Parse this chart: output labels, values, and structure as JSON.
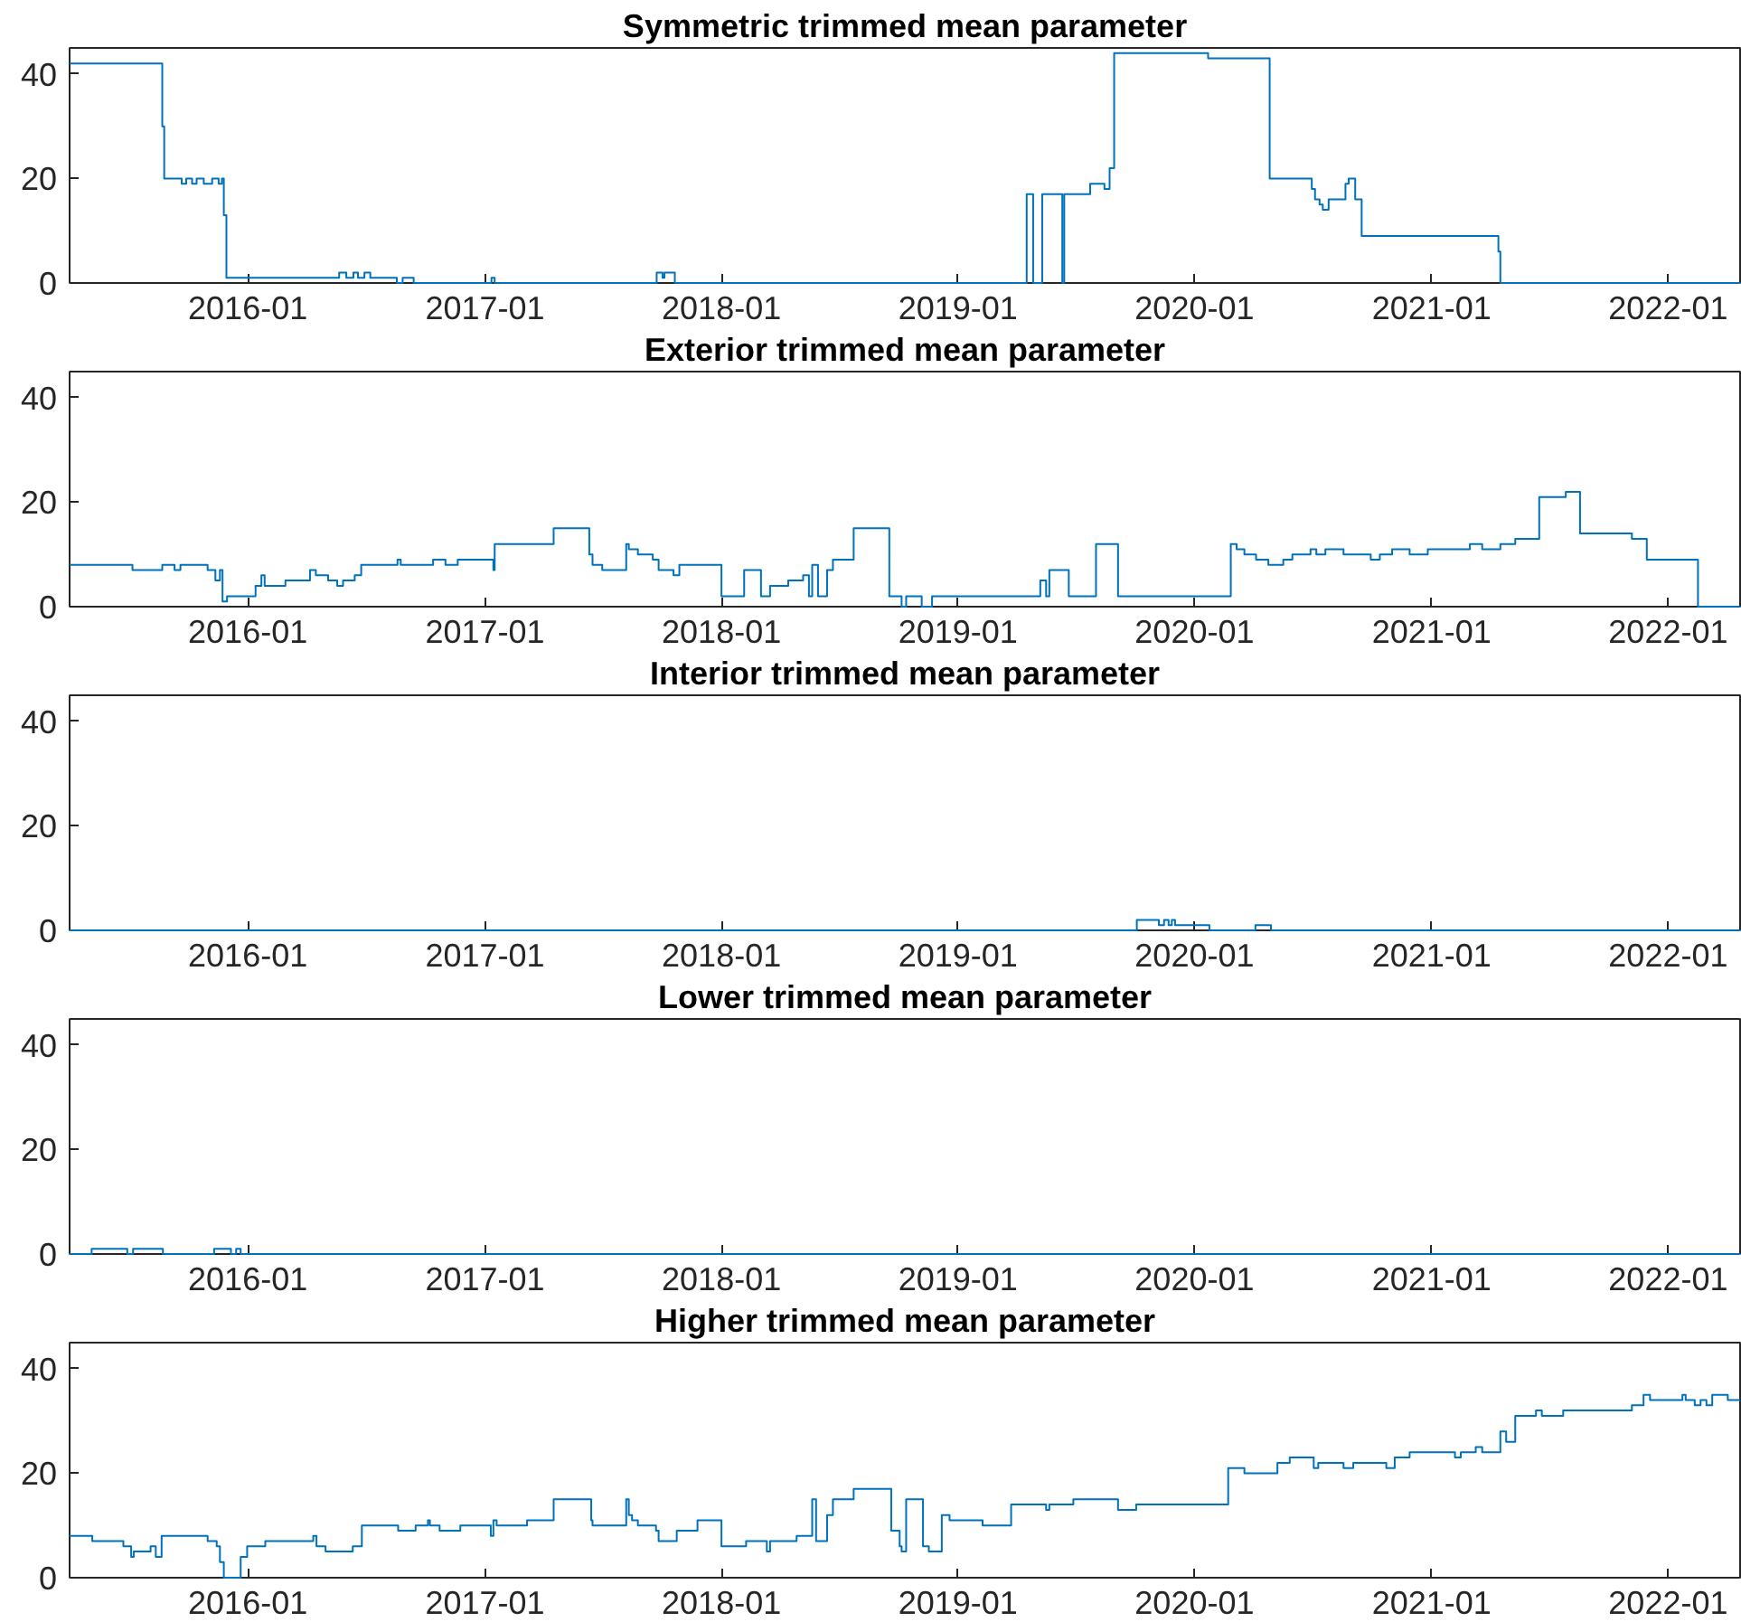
{
  "chart_data": [
    {
      "type": "step",
      "title": "Symmetric trimmed mean parameter",
      "color": "#0072bd",
      "xlim": [
        "2015-04-01",
        "2022-04-22"
      ],
      "xticks": [
        "2016-01",
        "2017-01",
        "2018-01",
        "2019-01",
        "2020-01",
        "2021-01",
        "2022-01"
      ],
      "ylim": [
        0,
        45
      ],
      "yticks": [
        0,
        20,
        40
      ],
      "x": [
        "2015-04-01",
        "2015-08-22",
        "2015-08-25",
        "2015-09-21",
        "2015-09-28",
        "2015-10-07",
        "2015-10-14",
        "2015-10-25",
        "2015-11-07",
        "2015-11-17",
        "2015-11-22",
        "2015-11-25",
        "2015-11-29",
        "2016-05-21",
        "2016-06-01",
        "2016-06-12",
        "2016-06-19",
        "2016-06-29",
        "2016-07-08",
        "2016-08-18",
        "2016-08-27",
        "2016-09-13",
        "2017-01-11",
        "2017-01-16",
        "2017-09-23",
        "2017-10-02",
        "2017-10-05",
        "2017-10-21",
        "2019-04-17",
        "2019-04-27",
        "2019-05-11",
        "2019-06-11",
        "2019-06-14",
        "2019-07-24",
        "2019-08-15",
        "2019-08-23",
        "2019-08-30",
        "2020-01-22",
        "2020-04-26",
        "2020-06-30",
        "2020-07-05",
        "2020-07-12",
        "2020-07-17",
        "2020-07-26",
        "2020-08-21",
        "2020-08-26",
        "2020-09-05",
        "2020-09-15",
        "2021-04-14",
        "2021-04-17",
        "2022-04-22"
      ],
      "values": [
        42,
        30,
        20,
        19,
        20,
        19,
        20,
        19,
        20,
        19,
        20,
        13,
        1,
        2,
        1,
        2,
        1,
        2,
        1,
        0,
        1,
        0,
        1,
        0,
        2,
        1,
        2,
        0,
        17,
        0,
        17,
        0,
        17,
        19,
        18,
        22,
        44,
        43,
        20,
        18,
        16,
        15,
        14,
        16,
        19,
        20,
        16,
        9,
        6,
        0,
        0
      ]
    },
    {
      "type": "step",
      "title": "Exterior trimmed mean parameter",
      "color": "#0072bd",
      "xlim": [
        "2015-04-01",
        "2022-04-22"
      ],
      "xticks": [
        "2016-01",
        "2017-01",
        "2018-01",
        "2019-01",
        "2020-01",
        "2021-01",
        "2022-01"
      ],
      "ylim": [
        0,
        45
      ],
      "yticks": [
        0,
        20,
        40
      ],
      "x": [
        "2015-04-01",
        "2015-07-07",
        "2015-08-22",
        "2015-09-10",
        "2015-09-19",
        "2015-10-31",
        "2015-11-12",
        "2015-11-19",
        "2015-11-23",
        "2015-11-30",
        "2016-01-13",
        "2016-01-22",
        "2016-01-27",
        "2016-02-28",
        "2016-04-06",
        "2016-04-15",
        "2016-05-04",
        "2016-05-18",
        "2016-05-27",
        "2016-06-14",
        "2016-06-24",
        "2016-08-19",
        "2016-08-24",
        "2016-10-13",
        "2016-11-01",
        "2016-11-20",
        "2017-01-14",
        "2017-01-16",
        "2017-04-17",
        "2017-06-11",
        "2017-06-16",
        "2017-07-01",
        "2017-08-07",
        "2017-08-11",
        "2017-08-25",
        "2017-09-17",
        "2017-09-26",
        "2017-10-19",
        "2017-10-28",
        "2018-01-01",
        "2018-02-05",
        "2018-03-03",
        "2018-03-17",
        "2018-04-14",
        "2018-05-07",
        "2018-05-16",
        "2018-05-21",
        "2018-05-30",
        "2018-06-13",
        "2018-06-22",
        "2018-07-24",
        "2018-09-17",
        "2018-10-06",
        "2018-10-13",
        "2018-11-06",
        "2018-11-22",
        "2019-05-08",
        "2019-05-17",
        "2019-05-22",
        "2019-06-21",
        "2019-08-02",
        "2019-09-05",
        "2020-02-26",
        "2020-03-06",
        "2020-03-18",
        "2020-04-05",
        "2020-04-24",
        "2020-05-17",
        "2020-05-31",
        "2020-06-28",
        "2020-07-07",
        "2020-07-21",
        "2020-08-18",
        "2020-09-29",
        "2020-10-13",
        "2020-11-01",
        "2020-11-28",
        "2020-12-26",
        "2021-03-01",
        "2021-03-20",
        "2021-04-17",
        "2021-05-10",
        "2021-06-16",
        "2021-07-27",
        "2021-08-18",
        "2021-11-06",
        "2021-11-29",
        "2022-02-16",
        "2022-04-22"
      ],
      "values": [
        8,
        7,
        8,
        7,
        8,
        7,
        5,
        7,
        1,
        2,
        4,
        6,
        4,
        5,
        7,
        6,
        5,
        4,
        5,
        6,
        8,
        9,
        8,
        9,
        8,
        9,
        7,
        12,
        15,
        10,
        8,
        7,
        12,
        11,
        10,
        9,
        7,
        6,
        8,
        2,
        7,
        2,
        4,
        5,
        6,
        2,
        8,
        2,
        7,
        9,
        15,
        2,
        0,
        2,
        0,
        2,
        5,
        2,
        7,
        2,
        12,
        2,
        12,
        11,
        10,
        9,
        8,
        9,
        10,
        11,
        10,
        11,
        10,
        9,
        10,
        11,
        10,
        11,
        12,
        11,
        12,
        13,
        21,
        22,
        14,
        13,
        9,
        0,
        0
      ]
    },
    {
      "type": "step",
      "title": "Interior trimmed mean parameter",
      "color": "#0072bd",
      "xlim": [
        "2015-04-01",
        "2022-04-22"
      ],
      "xticks": [
        "2016-01",
        "2017-01",
        "2018-01",
        "2019-01",
        "2020-01",
        "2021-01",
        "2022-01"
      ],
      "ylim": [
        0,
        45
      ],
      "yticks": [
        0,
        20,
        40
      ],
      "x": [
        "2015-04-01",
        "2019-10-04",
        "2019-11-07",
        "2019-11-15",
        "2019-11-22",
        "2019-11-27",
        "2019-12-02",
        "2020-01-24",
        "2020-04-04",
        "2020-04-28",
        "2022-04-22"
      ],
      "values": [
        0,
        2,
        1,
        2,
        1,
        2,
        1,
        0,
        1,
        0,
        0
      ]
    },
    {
      "type": "step",
      "title": "Lower trimmed mean parameter",
      "color": "#0072bd",
      "xlim": [
        "2015-04-01",
        "2022-04-22"
      ],
      "xticks": [
        "2016-01",
        "2017-01",
        "2018-01",
        "2019-01",
        "2020-01",
        "2021-01",
        "2022-01"
      ],
      "ylim": [
        0,
        45
      ],
      "yticks": [
        0,
        20,
        40
      ],
      "x": [
        "2015-04-01",
        "2015-05-05",
        "2015-06-29",
        "2015-07-08",
        "2015-08-23",
        "2015-11-10",
        "2015-12-06",
        "2015-12-14",
        "2015-12-21",
        "2022-04-22"
      ],
      "values": [
        0,
        1,
        0,
        1,
        0,
        1,
        0,
        1,
        0,
        0
      ]
    },
    {
      "type": "step",
      "title": "Higher trimmed mean parameter",
      "color": "#0072bd",
      "xlim": [
        "2015-04-01",
        "2022-04-22"
      ],
      "xticks": [
        "2016-01",
        "2017-01",
        "2018-01",
        "2019-01",
        "2020-01",
        "2021-01",
        "2022-01"
      ],
      "ylim": [
        0,
        45
      ],
      "yticks": [
        0,
        20,
        40
      ],
      "x": [
        "2015-04-01",
        "2015-05-06",
        "2015-06-23",
        "2015-07-05",
        "2015-07-09",
        "2015-08-04",
        "2015-08-12",
        "2015-08-21",
        "2015-10-31",
        "2015-11-14",
        "2015-11-19",
        "2015-11-25",
        "2015-12-21",
        "2015-12-31",
        "2016-01-28",
        "2016-04-11",
        "2016-04-16",
        "2016-04-30",
        "2016-06-11",
        "2016-06-25",
        "2016-08-20",
        "2016-09-16",
        "2016-10-05",
        "2016-10-08",
        "2016-10-23",
        "2016-11-24",
        "2017-01-10",
        "2017-01-14",
        "2017-01-19",
        "2017-03-07",
        "2017-04-17",
        "2017-06-14",
        "2017-06-16",
        "2017-08-07",
        "2017-08-11",
        "2017-08-16",
        "2017-08-25",
        "2017-09-22",
        "2017-09-26",
        "2017-10-24",
        "2017-11-25",
        "2018-01-01",
        "2018-02-08",
        "2018-03-12",
        "2018-03-17",
        "2018-04-27",
        "2018-05-21",
        "2018-05-27",
        "2018-06-13",
        "2018-06-22",
        "2018-07-24",
        "2018-09-20",
        "2018-10-03",
        "2018-10-06",
        "2018-10-13",
        "2018-11-08",
        "2018-11-17",
        "2018-12-07",
        "2018-12-19",
        "2019-02-08",
        "2019-03-24",
        "2019-05-17",
        "2019-05-22",
        "2019-06-28",
        "2019-09-05",
        "2019-10-03",
        "2020-02-22",
        "2020-03-18",
        "2020-05-08",
        "2020-05-27",
        "2020-07-03",
        "2020-07-10",
        "2020-08-18",
        "2020-09-02",
        "2020-10-23",
        "2020-11-05",
        "2020-11-28",
        "2021-02-06",
        "2021-02-15",
        "2021-03-10",
        "2021-03-20",
        "2021-04-17",
        "2021-04-26",
        "2021-05-10",
        "2021-06-11",
        "2021-06-20",
        "2021-07-23",
        "2021-11-06",
        "2021-11-24",
        "2021-12-04",
        "2022-01-23",
        "2022-01-28",
        "2022-02-11",
        "2022-02-20",
        "2022-03-01",
        "2022-03-10",
        "2022-04-03",
        "2022-04-22"
      ],
      "values": [
        8,
        7,
        6,
        4,
        5,
        6,
        4,
        8,
        7,
        6,
        3,
        0,
        4,
        6,
        7,
        8,
        6,
        5,
        6,
        10,
        9,
        10,
        11,
        10,
        9,
        10,
        8,
        11,
        10,
        11,
        15,
        11,
        10,
        15,
        12,
        11,
        10,
        9,
        7,
        9,
        11,
        6,
        7,
        5,
        7,
        8,
        15,
        7,
        12,
        15,
        17,
        9,
        6,
        5,
        15,
        6,
        5,
        12,
        11,
        10,
        14,
        13,
        14,
        15,
        13,
        14,
        21,
        20,
        22,
        23,
        21,
        22,
        21,
        22,
        21,
        23,
        24,
        23,
        24,
        25,
        24,
        28,
        26,
        31,
        32,
        31,
        32,
        33,
        35,
        34,
        35,
        34,
        33,
        34,
        33,
        35,
        34,
        34
      ]
    }
  ]
}
